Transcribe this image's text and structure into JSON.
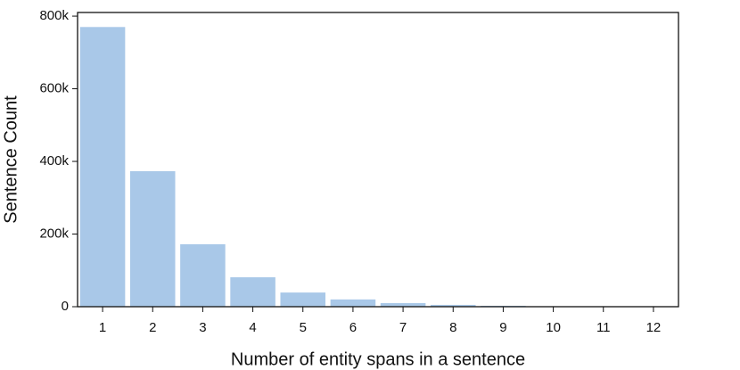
{
  "chart_data": {
    "type": "bar",
    "x_label": "Number of entity spans in a sentence",
    "y_label": "Sentence Count",
    "categories": [
      "1",
      "2",
      "3",
      "4",
      "5",
      "6",
      "7",
      "8",
      "9",
      "10",
      "11",
      "12"
    ],
    "values": [
      770000,
      373000,
      172000,
      81000,
      39000,
      20000,
      10000,
      5000,
      2500,
      1000,
      500,
      200
    ],
    "color": "#a9c8e8",
    "ylim": [
      0,
      810000
    ],
    "yticks": [
      0,
      {
        "value": 200000,
        "label": "200k"
      },
      {
        "value": 400000,
        "label": "400k"
      },
      {
        "value": 600000,
        "label": "600k"
      },
      {
        "value": 800000,
        "label": "800k"
      }
    ],
    "grid": false
  }
}
